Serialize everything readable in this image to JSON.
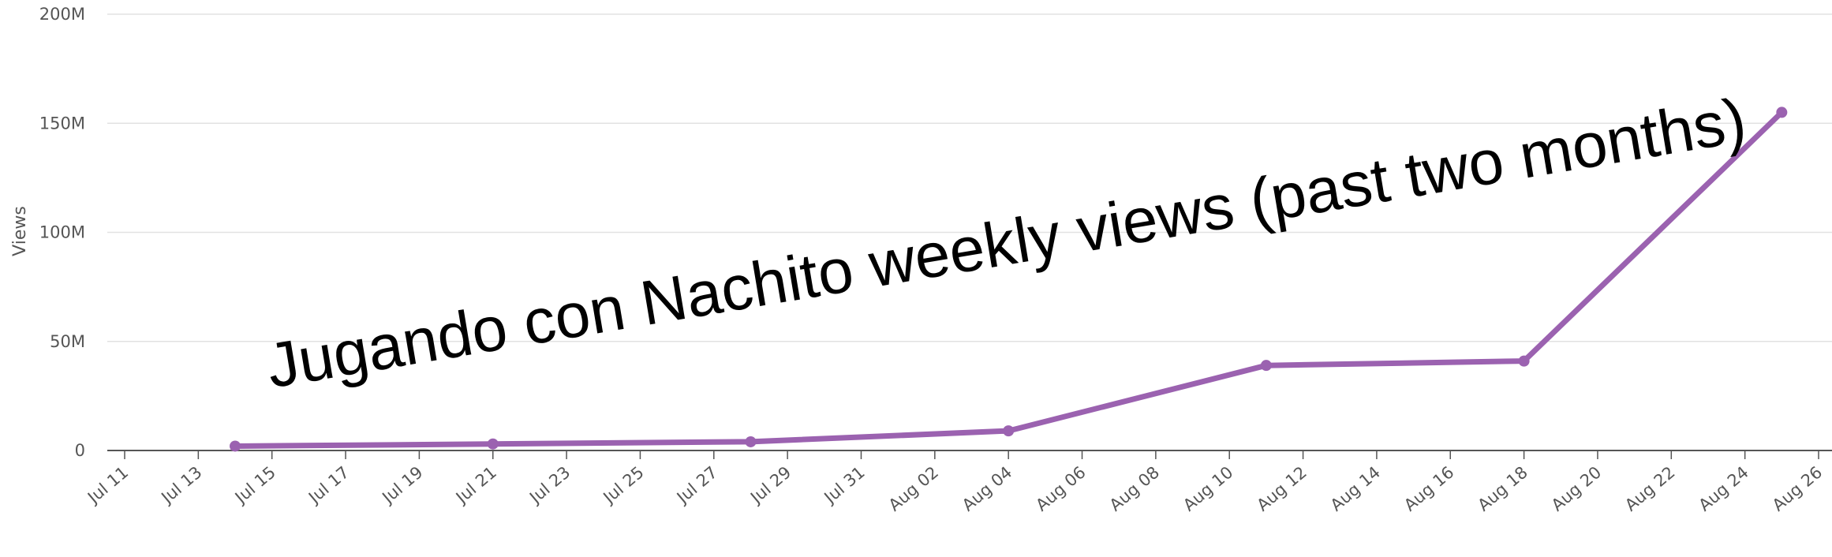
{
  "chart_data": {
    "type": "line",
    "title": "Jugando con Nachito weekly views (past two months)",
    "ylabel": "Views",
    "xlabel": "",
    "x_range": [
      "2024-07-11",
      "2024-08-26"
    ],
    "ylim": [
      0,
      200000000
    ],
    "y_ticks": [
      {
        "value": 0,
        "label": "0"
      },
      {
        "value": 50000000,
        "label": "50M"
      },
      {
        "value": 100000000,
        "label": "100M"
      },
      {
        "value": 150000000,
        "label": "150M"
      },
      {
        "value": 200000000,
        "label": "200M"
      }
    ],
    "x_ticks": [
      {
        "date": "2024-07-11",
        "label": "Jul 11"
      },
      {
        "date": "2024-07-13",
        "label": "Jul 13"
      },
      {
        "date": "2024-07-15",
        "label": "Jul 15"
      },
      {
        "date": "2024-07-17",
        "label": "Jul 17"
      },
      {
        "date": "2024-07-19",
        "label": "Jul 19"
      },
      {
        "date": "2024-07-21",
        "label": "Jul 21"
      },
      {
        "date": "2024-07-23",
        "label": "Jul 23"
      },
      {
        "date": "2024-07-25",
        "label": "Jul 25"
      },
      {
        "date": "2024-07-27",
        "label": "Jul 27"
      },
      {
        "date": "2024-07-29",
        "label": "Jul 29"
      },
      {
        "date": "2024-07-31",
        "label": "Jul 31"
      },
      {
        "date": "2024-08-02",
        "label": "Aug 02"
      },
      {
        "date": "2024-08-04",
        "label": "Aug 04"
      },
      {
        "date": "2024-08-06",
        "label": "Aug 06"
      },
      {
        "date": "2024-08-08",
        "label": "Aug 08"
      },
      {
        "date": "2024-08-10",
        "label": "Aug 10"
      },
      {
        "date": "2024-08-12",
        "label": "Aug 12"
      },
      {
        "date": "2024-08-14",
        "label": "Aug 14"
      },
      {
        "date": "2024-08-16",
        "label": "Aug 16"
      },
      {
        "date": "2024-08-18",
        "label": "Aug 18"
      },
      {
        "date": "2024-08-20",
        "label": "Aug 20"
      },
      {
        "date": "2024-08-22",
        "label": "Aug 22"
      },
      {
        "date": "2024-08-24",
        "label": "Aug 24"
      },
      {
        "date": "2024-08-26",
        "label": "Aug 26"
      }
    ],
    "series": [
      {
        "color": "#9b62b0",
        "points": [
          {
            "x": "2024-07-14",
            "y": 2000000
          },
          {
            "x": "2024-07-21",
            "y": 3000000
          },
          {
            "x": "2024-07-28",
            "y": 4000000
          },
          {
            "x": "2024-08-04",
            "y": 9000000
          },
          {
            "x": "2024-08-11",
            "y": 39000000
          },
          {
            "x": "2024-08-18",
            "y": 41000000
          },
          {
            "x": "2024-08-25",
            "y": 155000000
          }
        ]
      }
    ],
    "grid": true,
    "legend": "none"
  }
}
